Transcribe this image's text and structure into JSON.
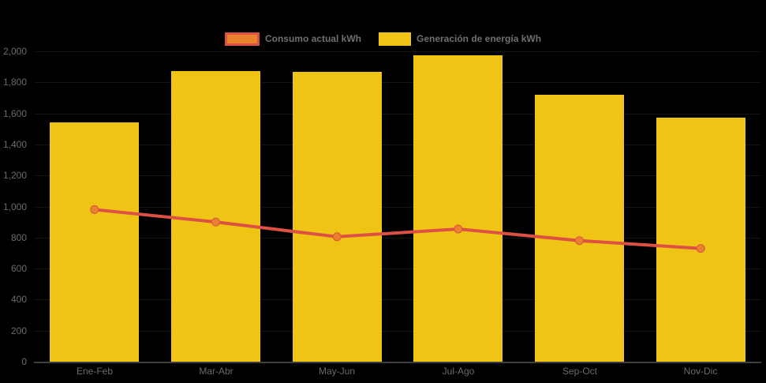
{
  "app": {
    "background_color": "#000000",
    "text_color_axis": "#6a6a6a",
    "text_color_legend": "#6f6f6f",
    "gridline_color": "#141414",
    "axis_line_color": "#3f3f3f"
  },
  "legend": {
    "position": "top-center",
    "items": [
      {
        "label": "Consumo actual kWh",
        "series_type": "line",
        "swatch_fill": "#e8822d",
        "swatch_border": "#dd5044"
      },
      {
        "label": "Generación de energía kWh",
        "series_type": "bar",
        "swatch_fill": "#f0c414",
        "swatch_border": "#f0c414"
      }
    ]
  },
  "chart_data": {
    "type": "bar",
    "subtype": "bar-with-line-overlay",
    "title": "",
    "xlabel": "",
    "ylabel": "",
    "categories": [
      "Ene-Feb",
      "Mar-Abr",
      "May-Jun",
      "Jul-Ago",
      "Sep-Oct",
      "Nov-Dic"
    ],
    "series": [
      {
        "name": "Generación de energía kWh",
        "type": "bar",
        "color": "#f0c414",
        "values": [
          1540,
          1875,
          1870,
          1975,
          1720,
          1575
        ]
      },
      {
        "name": "Consumo actual kWh",
        "type": "line",
        "color": "#dd5044",
        "marker_color": "#e8822d",
        "values": [
          980,
          900,
          805,
          855,
          780,
          730
        ]
      }
    ],
    "ylim": [
      0,
      2000
    ],
    "y_tick_step": 200,
    "y_tick_labels": [
      "0",
      "200",
      "400",
      "600",
      "800",
      "1,000",
      "1,200",
      "1,400",
      "1,600",
      "1,800",
      "2,000"
    ],
    "grid": "faint-horizontal",
    "legend_position": "top-center"
  }
}
